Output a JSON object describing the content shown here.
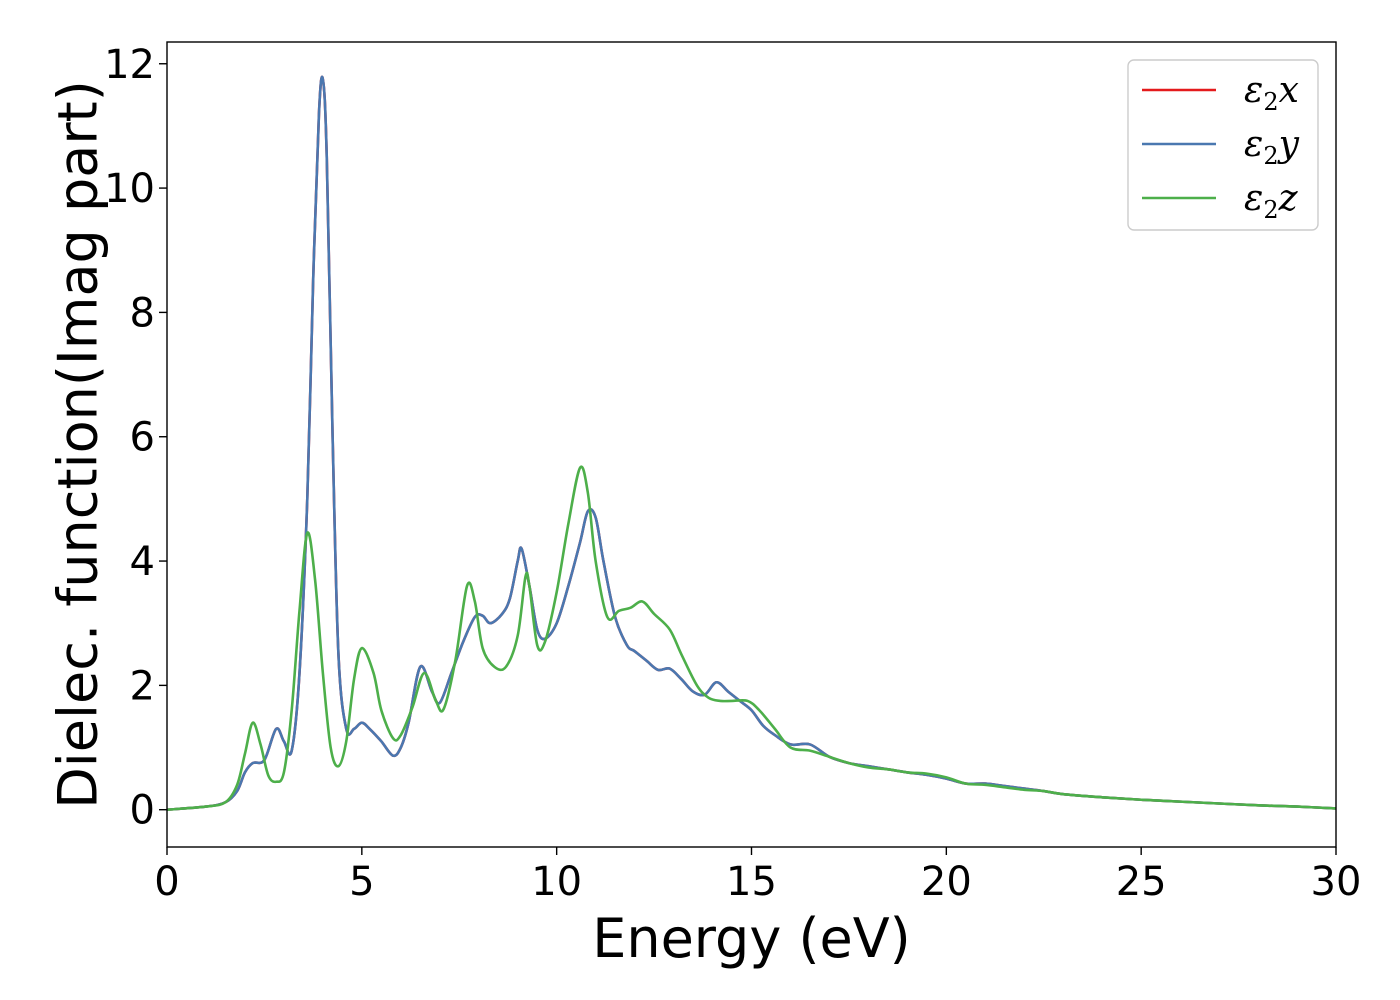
{
  "chart_data": {
    "type": "line",
    "title": "",
    "xlabel": "Energy (eV)",
    "ylabel": "Dielec. function(Imag part)",
    "xlim": [
      0,
      30
    ],
    "ylim": [
      -0.6,
      12.35
    ],
    "xticks": [
      0,
      5,
      10,
      15,
      20,
      25,
      30
    ],
    "yticks": [
      0,
      2,
      4,
      6,
      8,
      10,
      12
    ],
    "xtick_labels": [
      "0",
      "5",
      "10",
      "15",
      "20",
      "25",
      "30"
    ],
    "ytick_labels": [
      "0",
      "2",
      "4",
      "6",
      "8",
      "10",
      "12"
    ],
    "grid": false,
    "legend_position": "top-right",
    "series": [
      {
        "name": "ε2x",
        "legend": {
          "base": "ε",
          "sub": "2",
          "var": "x"
        },
        "color": "#e41a1c",
        "x": [
          0,
          1,
          1.5,
          1.8,
          2.0,
          2.2,
          2.5,
          2.8,
          3.0,
          3.2,
          3.4,
          3.6,
          3.75,
          3.9,
          4.0,
          4.1,
          4.25,
          4.4,
          4.6,
          4.8,
          5.0,
          5.2,
          5.5,
          5.8,
          6.0,
          6.2,
          6.5,
          6.8,
          7.0,
          7.3,
          7.6,
          7.9,
          8.1,
          8.3,
          8.6,
          8.8,
          9.0,
          9.1,
          9.3,
          9.5,
          9.7,
          10.0,
          10.3,
          10.6,
          10.8,
          11.0,
          11.2,
          11.5,
          11.8,
          12.0,
          12.3,
          12.6,
          12.9,
          13.2,
          13.5,
          13.8,
          14.1,
          14.4,
          14.7,
          15.0,
          15.3,
          15.6,
          16.0,
          16.5,
          17.0,
          17.5,
          18.0,
          18.5,
          19.0,
          19.5,
          20.0,
          20.5,
          21.0,
          21.5,
          22.0,
          22.5,
          23.0,
          24.0,
          25.0,
          26.0,
          27.0,
          28.0,
          29.0,
          30.0
        ],
        "values": [
          0,
          0.05,
          0.12,
          0.3,
          0.6,
          0.75,
          0.8,
          1.3,
          1.1,
          0.95,
          2.2,
          5.0,
          8.5,
          11.2,
          11.75,
          10.5,
          6.0,
          2.5,
          1.3,
          1.3,
          1.4,
          1.3,
          1.1,
          0.87,
          1.0,
          1.4,
          2.3,
          1.9,
          1.72,
          2.2,
          2.7,
          3.1,
          3.12,
          3.0,
          3.15,
          3.4,
          4.0,
          4.2,
          3.6,
          2.9,
          2.75,
          3.0,
          3.6,
          4.3,
          4.8,
          4.7,
          4.0,
          3.1,
          2.65,
          2.55,
          2.4,
          2.25,
          2.27,
          2.1,
          1.9,
          1.85,
          2.05,
          1.9,
          1.75,
          1.6,
          1.35,
          1.2,
          1.05,
          1.05,
          0.85,
          0.75,
          0.7,
          0.65,
          0.6,
          0.56,
          0.5,
          0.42,
          0.42,
          0.38,
          0.34,
          0.3,
          0.25,
          0.2,
          0.16,
          0.13,
          0.1,
          0.07,
          0.05,
          0.02
        ]
      },
      {
        "name": "ε2y",
        "legend": {
          "base": "ε",
          "sub": "2",
          "var": "y"
        },
        "color": "#4a78b0",
        "x": [
          0,
          1,
          1.5,
          1.8,
          2.0,
          2.2,
          2.5,
          2.8,
          3.0,
          3.2,
          3.4,
          3.6,
          3.75,
          3.9,
          4.0,
          4.1,
          4.25,
          4.4,
          4.6,
          4.8,
          5.0,
          5.2,
          5.5,
          5.8,
          6.0,
          6.2,
          6.5,
          6.8,
          7.0,
          7.3,
          7.6,
          7.9,
          8.1,
          8.3,
          8.6,
          8.8,
          9.0,
          9.1,
          9.3,
          9.5,
          9.7,
          10.0,
          10.3,
          10.6,
          10.8,
          11.0,
          11.2,
          11.5,
          11.8,
          12.0,
          12.3,
          12.6,
          12.9,
          13.2,
          13.5,
          13.8,
          14.1,
          14.4,
          14.7,
          15.0,
          15.3,
          15.6,
          16.0,
          16.5,
          17.0,
          17.5,
          18.0,
          18.5,
          19.0,
          19.5,
          20.0,
          20.5,
          21.0,
          21.5,
          22.0,
          22.5,
          23.0,
          24.0,
          25.0,
          26.0,
          27.0,
          28.0,
          29.0,
          30.0
        ],
        "values": [
          0,
          0.05,
          0.12,
          0.3,
          0.6,
          0.75,
          0.8,
          1.3,
          1.1,
          0.95,
          2.2,
          5.0,
          8.5,
          11.2,
          11.75,
          10.5,
          6.0,
          2.5,
          1.3,
          1.3,
          1.4,
          1.3,
          1.1,
          0.87,
          1.0,
          1.4,
          2.3,
          1.9,
          1.72,
          2.2,
          2.7,
          3.1,
          3.12,
          3.0,
          3.15,
          3.4,
          4.0,
          4.2,
          3.6,
          2.9,
          2.75,
          3.0,
          3.6,
          4.3,
          4.8,
          4.7,
          4.0,
          3.1,
          2.65,
          2.55,
          2.4,
          2.25,
          2.27,
          2.1,
          1.9,
          1.85,
          2.05,
          1.9,
          1.75,
          1.6,
          1.35,
          1.2,
          1.05,
          1.05,
          0.85,
          0.75,
          0.7,
          0.65,
          0.6,
          0.56,
          0.5,
          0.42,
          0.42,
          0.38,
          0.34,
          0.3,
          0.25,
          0.2,
          0.16,
          0.13,
          0.1,
          0.07,
          0.05,
          0.02
        ]
      },
      {
        "name": "ε2z",
        "legend": {
          "base": "ε",
          "sub": "2",
          "var": "z"
        },
        "color": "#4daf4a",
        "x": [
          0,
          1,
          1.5,
          1.8,
          2.0,
          2.2,
          2.4,
          2.6,
          2.8,
          3.0,
          3.2,
          3.4,
          3.6,
          3.8,
          4.0,
          4.2,
          4.4,
          4.6,
          4.8,
          5.0,
          5.3,
          5.5,
          5.8,
          6.0,
          6.3,
          6.6,
          6.9,
          7.1,
          7.4,
          7.7,
          7.9,
          8.1,
          8.4,
          8.7,
          9.0,
          9.2,
          9.3,
          9.5,
          9.7,
          10.0,
          10.3,
          10.6,
          10.8,
          11.0,
          11.3,
          11.6,
          11.9,
          12.2,
          12.5,
          12.9,
          13.2,
          13.6,
          13.9,
          14.2,
          14.5,
          14.9,
          15.2,
          15.6,
          16.0,
          16.5,
          17.0,
          17.5,
          18.0,
          18.5,
          19.0,
          19.5,
          20.0,
          20.5,
          21.0,
          21.5,
          22.0,
          22.5,
          23.0,
          24.0,
          25.0,
          26.0,
          27.0,
          28.0,
          29.0,
          30.0
        ],
        "values": [
          0,
          0.05,
          0.12,
          0.4,
          0.9,
          1.4,
          1.05,
          0.55,
          0.45,
          0.6,
          1.6,
          3.2,
          4.45,
          3.7,
          2.2,
          1.0,
          0.7,
          1.1,
          2.1,
          2.6,
          2.2,
          1.6,
          1.15,
          1.2,
          1.65,
          2.2,
          1.75,
          1.62,
          2.4,
          3.6,
          3.35,
          2.6,
          2.3,
          2.3,
          2.8,
          3.75,
          3.6,
          2.65,
          2.7,
          3.5,
          4.6,
          5.5,
          5.1,
          4.0,
          3.1,
          3.2,
          3.25,
          3.35,
          3.15,
          2.9,
          2.5,
          2.0,
          1.8,
          1.75,
          1.75,
          1.75,
          1.6,
          1.3,
          1.0,
          0.95,
          0.85,
          0.75,
          0.68,
          0.65,
          0.6,
          0.58,
          0.52,
          0.42,
          0.4,
          0.36,
          0.32,
          0.3,
          0.25,
          0.2,
          0.16,
          0.13,
          0.1,
          0.07,
          0.05,
          0.02
        ]
      }
    ]
  }
}
